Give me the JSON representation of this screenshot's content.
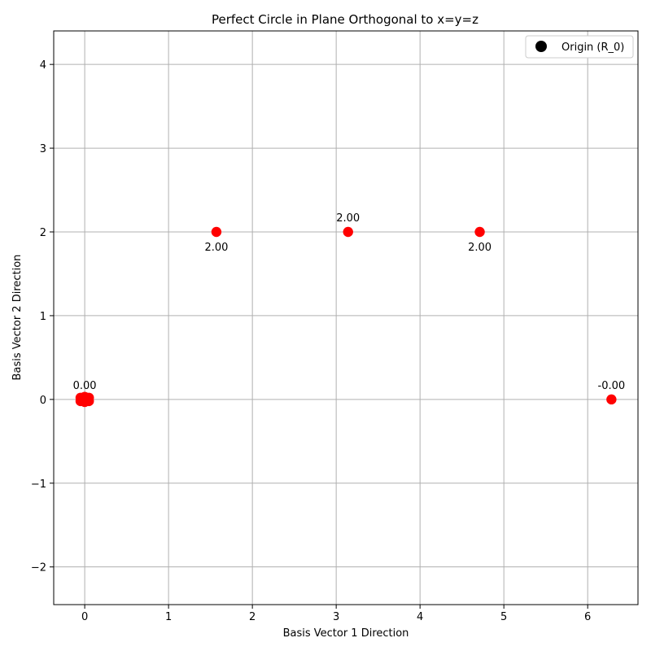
{
  "chart_data": {
    "type": "scatter",
    "title": "Perfect Circle in Plane Orthogonal to x=y=z",
    "xlabel": "Basis Vector 1 Direction",
    "ylabel": "Basis Vector 2 Direction",
    "xlim": [
      -0.37,
      6.6
    ],
    "ylim": [
      -2.45,
      4.4
    ],
    "xticks": [
      0,
      1,
      2,
      3,
      4,
      5,
      6
    ],
    "yticks": [
      -2,
      -1,
      0,
      1,
      2,
      3,
      4
    ],
    "xtick_labels": [
      "0",
      "1",
      "2",
      "3",
      "4",
      "5",
      "6"
    ],
    "ytick_labels": [
      "−2",
      "−1",
      "0",
      "1",
      "2",
      "3",
      "4"
    ],
    "grid": true,
    "series": [
      {
        "color": "#ff0000",
        "points": [
          {
            "x": 0,
            "y": 0
          },
          {
            "x": -0.05,
            "y": 0.02
          },
          {
            "x": 0.05,
            "y": 0.02
          },
          {
            "x": -0.05,
            "y": -0.02
          },
          {
            "x": 0.05,
            "y": -0.02
          },
          {
            "x": 0.0,
            "y": 0.03
          },
          {
            "x": 0.0,
            "y": -0.03
          },
          {
            "x": 1.5708,
            "y": 2.0
          },
          {
            "x": 3.1416,
            "y": 2.0
          },
          {
            "x": 4.7124,
            "y": 2.0
          },
          {
            "x": 6.2832,
            "y": 0.0
          }
        ]
      },
      {
        "name": "Origin (R_0)",
        "color": "#000000",
        "points": []
      }
    ],
    "annotations": [
      {
        "text": "0.00",
        "x": 0,
        "y": 0,
        "position": "above"
      },
      {
        "text": "2.00",
        "x": 1.5708,
        "y": 2.0,
        "position": "below"
      },
      {
        "text": "2.00",
        "x": 3.1416,
        "y": 2.0,
        "position": "above"
      },
      {
        "text": "2.00",
        "x": 4.7124,
        "y": 2.0,
        "position": "below"
      },
      {
        "text": "-0.00",
        "x": 6.2832,
        "y": 0.0,
        "position": "above"
      }
    ],
    "legend": {
      "placement": "top-right",
      "entries": [
        {
          "label": "Origin (R_0)",
          "color": "#000000",
          "marker": "circle"
        }
      ]
    }
  }
}
